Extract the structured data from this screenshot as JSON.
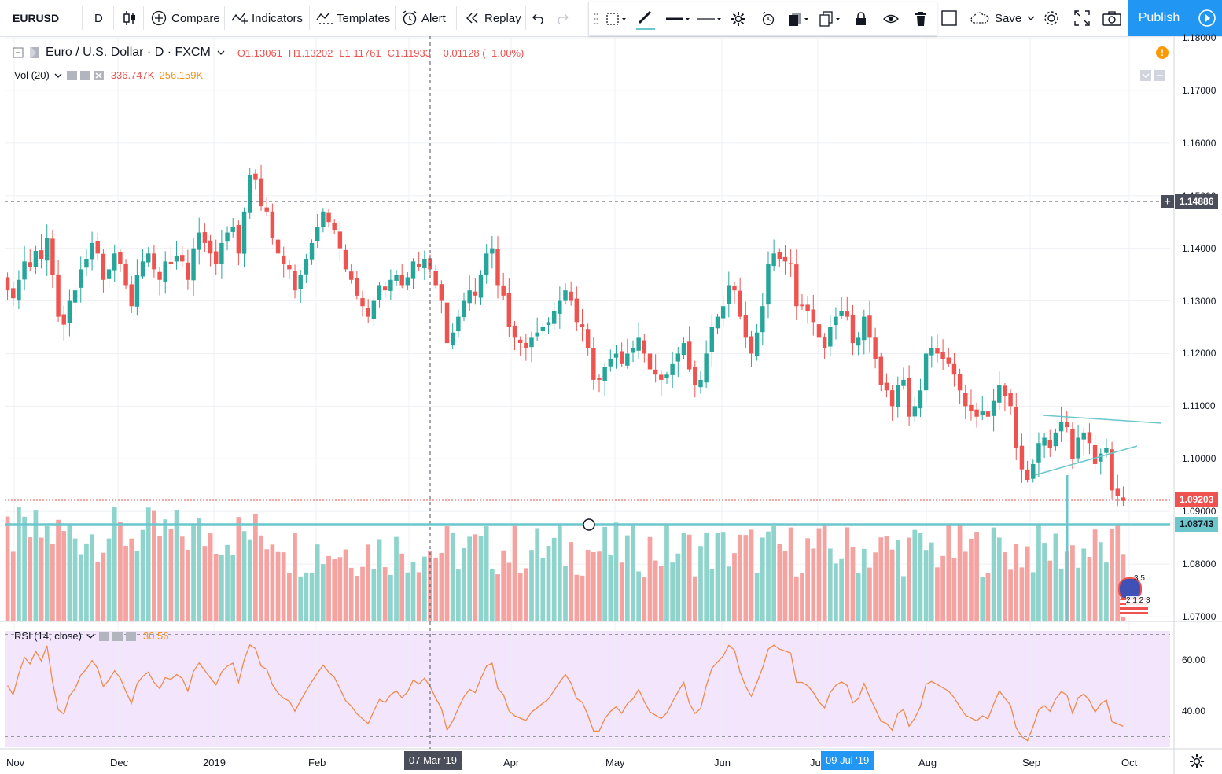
{
  "toolbar": {
    "symbol": "EURUSD",
    "interval": "D",
    "compare": "Compare",
    "indicators": "Indicators",
    "templates": "Templates",
    "alert": "Alert",
    "replay": "Replay",
    "save": "Save",
    "publish": "Publish"
  },
  "legend": {
    "title": "Euro / U.S. Dollar · D · FXCM",
    "open": "O1.13061",
    "high": "H1.13202",
    "low": "L1.11761",
    "close": "C1.11933",
    "change": "−0.01128 (−1.00%)",
    "vol_label": "Vol (20)",
    "vol_value1": "336.747K",
    "vol_value2": "256.159K",
    "rsi_label": "RSI (14, close)",
    "rsi_value": "30.56"
  },
  "price_axis": [
    "1.18000",
    "1.17000",
    "1.16000",
    "1.15000",
    "1.14000",
    "1.13000",
    "1.12000",
    "1.11000",
    "1.10000",
    "1.09000",
    "1.08000",
    "1.07000"
  ],
  "rsi_axis": [
    "60.00",
    "40.00"
  ],
  "price_tags": {
    "crosshair": "1.14886",
    "last": "1.09203",
    "hline": "1.08743"
  },
  "time_axis": [
    "Nov",
    "Dec",
    "2019",
    "Feb",
    "Apr",
    "May",
    "Jun",
    "Jul",
    "Aug",
    "Sep",
    "Oct"
  ],
  "time_tags": {
    "crosshair": "07 Mar '19",
    "selected": "09 Jul '19"
  },
  "events_badge": {
    "top": "3  5",
    "bottom": "2  1  2  3"
  },
  "colors": {
    "up": "#26a69a",
    "down": "#ef5350",
    "up_vol": "#8fd4cc",
    "down_vol": "#f4a3a1",
    "rsi": "#f08a4b",
    "rsi_bg": "#f3e5fb",
    "accent": "#2196f3",
    "hline": "#6cc7cd"
  },
  "chart_data": {
    "type": "candlestick",
    "title": "Euro / U.S. Dollar · D · FXCM",
    "ylim": [
      1.07,
      1.18
    ],
    "close": [
      1.132,
      1.1305,
      1.134,
      1.1375,
      1.1365,
      1.1395,
      1.138,
      1.142,
      1.135,
      1.127,
      1.1255,
      1.13,
      1.132,
      1.136,
      1.138,
      1.141,
      1.139,
      1.134,
      1.136,
      1.139,
      1.137,
      1.133,
      1.129,
      1.135,
      1.1375,
      1.139,
      1.136,
      1.134,
      1.1375,
      1.137,
      1.1385,
      1.1375,
      1.134,
      1.14,
      1.143,
      1.141,
      1.139,
      1.137,
      1.141,
      1.143,
      1.144,
      1.139,
      1.147,
      1.154,
      1.153,
      1.148,
      1.147,
      1.142,
      1.139,
      1.137,
      1.136,
      1.132,
      1.135,
      1.138,
      1.141,
      1.144,
      1.147,
      1.145,
      1.1435,
      1.14,
      1.136,
      1.134,
      1.131,
      1.129,
      1.127,
      1.13,
      1.133,
      1.132,
      1.134,
      1.135,
      1.133,
      1.1345,
      1.1375,
      1.1365,
      1.138,
      1.136,
      1.133,
      1.13,
      1.122,
      1.124,
      1.127,
      1.13,
      1.132,
      1.131,
      1.135,
      1.139,
      1.14,
      1.133,
      1.131,
      1.125,
      1.123,
      1.122,
      1.121,
      1.123,
      1.124,
      1.125,
      1.126,
      1.128,
      1.13,
      1.132,
      1.13,
      1.126,
      1.125,
      1.121,
      1.115,
      1.115,
      1.1175,
      1.119,
      1.12,
      1.118,
      1.12,
      1.121,
      1.123,
      1.12,
      1.117,
      1.116,
      1.115,
      1.116,
      1.118,
      1.12,
      1.122,
      1.117,
      1.114,
      1.115,
      1.12,
      1.125,
      1.127,
      1.129,
      1.133,
      1.132,
      1.127,
      1.123,
      1.12,
      1.124,
      1.129,
      1.137,
      1.139,
      1.138,
      1.1375,
      1.137,
      1.129,
      1.129,
      1.128,
      1.126,
      1.123,
      1.121,
      1.125,
      1.127,
      1.128,
      1.127,
      1.122,
      1.123,
      1.127,
      1.123,
      1.119,
      1.114,
      1.113,
      1.11,
      1.114,
      1.115,
      1.108,
      1.11,
      1.113,
      1.12,
      1.121,
      1.12,
      1.119,
      1.118,
      1.116,
      1.113,
      1.11,
      1.109,
      1.108,
      1.109,
      1.108,
      1.111,
      1.114,
      1.112,
      1.11,
      1.102,
      1.098,
      1.096,
      1.099,
      1.103,
      1.104,
      1.102,
      1.105,
      1.107,
      1.106,
      1.1,
      1.104,
      1.105,
      1.103,
      1.099,
      1.101,
      1.102,
      1.094,
      1.093,
      1.092
    ]
  }
}
